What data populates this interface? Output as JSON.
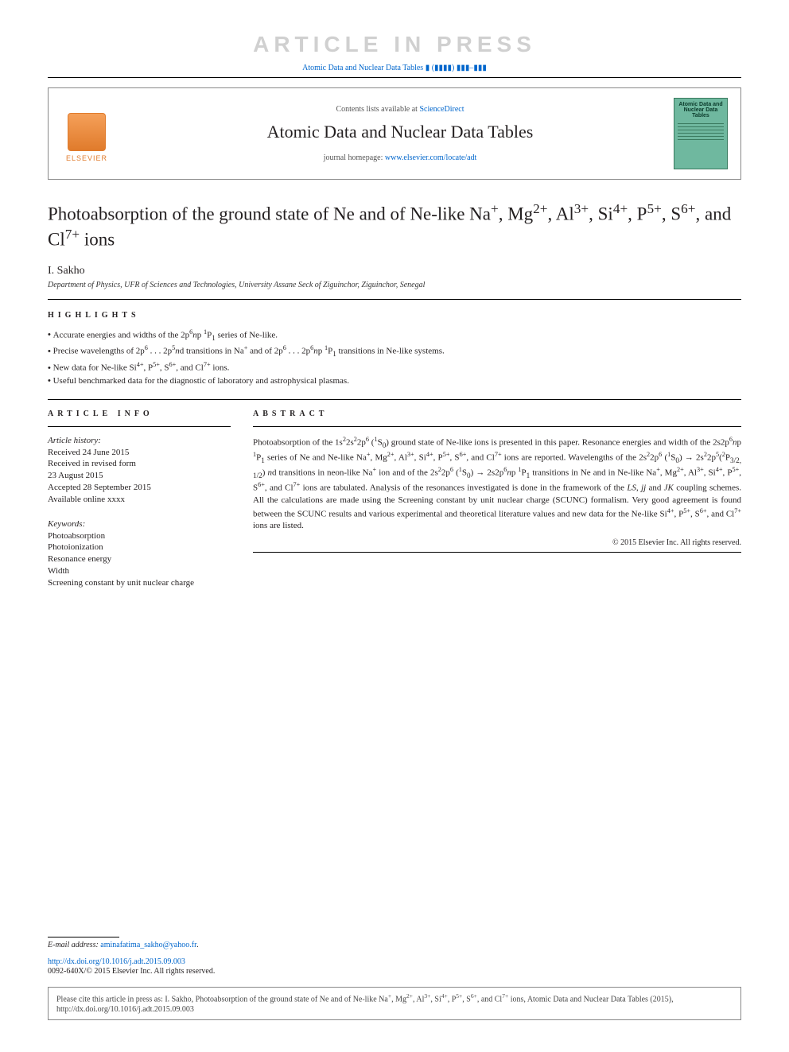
{
  "banner": {
    "article_in_press": "ARTICLE IN PRESS",
    "running_head": "Atomic Data and Nuclear Data Tables ▮ (▮▮▮▮) ▮▮▮–▮▮▮"
  },
  "header": {
    "contents_prefix": "Contents lists available at ",
    "contents_link": "ScienceDirect",
    "journal_name": "Atomic Data and Nuclear Data Tables",
    "homepage_prefix": "journal homepage: ",
    "homepage_link": "www.elsevier.com/locate/adt",
    "publisher_label": "ELSEVIER",
    "cover_title": "Atomic Data and Nuclear Data Tables"
  },
  "title_html": "Photoabsorption of the ground state of Ne and of Ne-like Na<sup>+</sup>, Mg<sup>2+</sup>, Al<sup>3+</sup>, Si<sup>4+</sup>, P<sup>5+</sup>, S<sup>6+</sup>, and Cl<sup>7+</sup> ions",
  "author": "I. Sakho",
  "affiliation": "Department of Physics, UFR of Sciences and Technologies, University Assane Seck of Ziguinchor, Ziguinchor, Senegal",
  "highlights_label": "HIGHLIGHTS",
  "highlights": [
    "Accurate energies and widths of the 2p<sup>6</sup><i>n</i>p <sup>1</sup>P<sub>1</sub> series of Ne-like.",
    "Precise wavelengths of 2p<sup>6</sup> . . . 2p<sup>5</sup><i>n</i>d transitions in Na<sup>+</sup> and of 2p<sup>6</sup> . . . 2p<sup>6</sup><i>n</i>p <sup>1</sup>P<sub>1</sub> transitions in Ne-like systems.",
    "New data for Ne-like Si<sup>4+</sup>, P<sup>5+</sup>, S<sup>6+</sup>, and Cl<sup>7+</sup> ions.",
    "Useful benchmarked data for the diagnostic of laboratory and astrophysical plasmas."
  ],
  "article_info_label": "ARTICLE INFO",
  "abstract_label": "ABSTRACT",
  "history": {
    "head": "Article history:",
    "lines": [
      "Received 24 June 2015",
      "Received in revised form",
      "23 August 2015",
      "Accepted 28 September 2015",
      "Available online xxxx"
    ]
  },
  "keywords": {
    "head": "Keywords:",
    "items": [
      "Photoabsorption",
      "Photoionization",
      "Resonance energy",
      "Width",
      "Screening constant by unit nuclear charge"
    ]
  },
  "abstract_html": "Photoabsorption of the 1s<sup>2</sup>2s<sup>2</sup>2p<sup>6</sup> (<sup>1</sup>S<sub>0</sub>) ground state of Ne-like ions is presented in this paper. Resonance energies and width of the 2s2p<sup>6</sup><i>n</i>p <sup>1</sup>P<sub>1</sub> series of Ne and Ne-like Na<sup>+</sup>, Mg<sup>2+</sup>, Al<sup>3+</sup>, Si<sup>4+</sup>, P<sup>5+</sup>, S<sup>6+</sup>, and Cl<sup>7+</sup> ions are reported. Wavelengths of the 2s<sup>2</sup>2p<sup>6</sup> (<sup>1</sup>S<sub>0</sub>) → 2s<sup>2</sup>2p<sup>5</sup>(<sup>2</sup>P<sub>3/2, 1/2</sub>) <i>n</i>d transitions in neon-like Na<sup>+</sup> ion and of the 2s<sup>2</sup>2p<sup>6</sup> (<sup>1</sup>S<sub>0</sub>) → 2s2p<sup>6</sup><i>n</i>p <sup>1</sup>P<sub>1</sub> transitions in Ne and in Ne-like Na<sup>+</sup>, Mg<sup>2+</sup>, Al<sup>3+</sup>, Si<sup>4+</sup>, P<sup>5+</sup>, S<sup>6+</sup>, and Cl<sup>7+</sup> ions are tabulated. Analysis of the resonances investigated is done in the framework of the <i>LS</i>, <i>jj</i> and <i>JK</i> coupling schemes. All the calculations are made using the Screening constant by unit nuclear charge (SCUNC) formalism. Very good agreement is found between the SCUNC results and various experimental and theoretical literature values and new data for the Ne-like Si<sup>4+</sup>, P<sup>5+</sup>, S<sup>6+</sup>, and Cl<sup>7+</sup> ions are listed.",
  "copyright": "© 2015 Elsevier Inc. All rights reserved.",
  "footer": {
    "email_label": "E-mail address: ",
    "email": "aminafatima_sakho@yahoo.fr",
    "doi_link": "http://dx.doi.org/10.1016/j.adt.2015.09.003",
    "issn_line": "0092-640X/© 2015 Elsevier Inc. All rights reserved.",
    "cite_html": "Please cite this article in press as: I. Sakho, Photoabsorption of the ground state of Ne and of Ne-like Na<sup>+</sup>, Mg<sup>2+</sup>, Al<sup>3+</sup>, Si<sup>4+</sup>, P<sup>5+</sup>, S<sup>6+</sup>, and Cl<sup>7+</sup> ions, Atomic Data and Nuclear Data Tables (2015), http://dx.doi.org/10.1016/j.adt.2015.09.003"
  },
  "colors": {
    "link": "#0066cc",
    "elsevier_orange": "#e07b2c",
    "cover_bg": "#6fb89f",
    "text": "#231f20",
    "banner_gray": "#d0d0d0"
  }
}
